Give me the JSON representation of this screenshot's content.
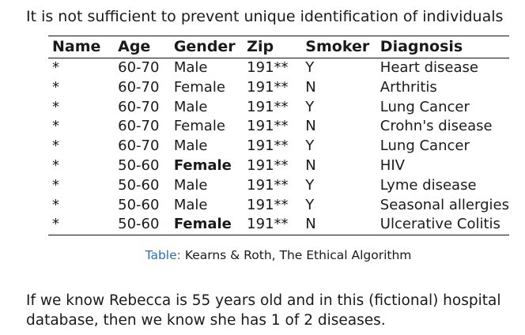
{
  "heading": "It is not sufficient to prevent unique identification of individuals",
  "table": {
    "headers": [
      "Name",
      "Age",
      "Gender",
      "Zip",
      "Smoker",
      "Diagnosis"
    ],
    "rows": [
      {
        "name": "*",
        "age": "60-70",
        "gender": "Male",
        "zip": "191**",
        "smoker": "Y",
        "diagnosis": "Heart disease",
        "gender_bold": false
      },
      {
        "name": "*",
        "age": "60-70",
        "gender": "Female",
        "zip": "191**",
        "smoker": "N",
        "diagnosis": "Arthritis",
        "gender_bold": false
      },
      {
        "name": "*",
        "age": "60-70",
        "gender": "Male",
        "zip": "191**",
        "smoker": "Y",
        "diagnosis": "Lung Cancer",
        "gender_bold": false
      },
      {
        "name": "*",
        "age": "60-70",
        "gender": "Female",
        "zip": "191**",
        "smoker": "N",
        "diagnosis": "Crohn's disease",
        "gender_bold": false
      },
      {
        "name": "*",
        "age": "60-70",
        "gender": "Male",
        "zip": "191**",
        "smoker": "Y",
        "diagnosis": "Lung Cancer",
        "gender_bold": false
      },
      {
        "name": "*",
        "age": "50-60",
        "gender": "Female",
        "zip": "191**",
        "smoker": "N",
        "diagnosis": "HIV",
        "gender_bold": true
      },
      {
        "name": "*",
        "age": "50-60",
        "gender": "Male",
        "zip": "191**",
        "smoker": "Y",
        "diagnosis": "Lyme disease",
        "gender_bold": false
      },
      {
        "name": "*",
        "age": "50-60",
        "gender": "Male",
        "zip": "191**",
        "smoker": "Y",
        "diagnosis": "Seasonal allergies",
        "gender_bold": false
      },
      {
        "name": "*",
        "age": "50-60",
        "gender": "Female",
        "zip": "191**",
        "smoker": "N",
        "diagnosis": "Ulcerative Colitis",
        "gender_bold": true
      }
    ]
  },
  "caption": {
    "label": "Table:",
    "text": "Kearns & Roth, The Ethical Algorithm",
    "label_color": "#2c6fb5"
  },
  "footer": "If we know Rebecca is 55 years old and in this (fictional) hospital database, then we know she has 1 of 2 diseases."
}
